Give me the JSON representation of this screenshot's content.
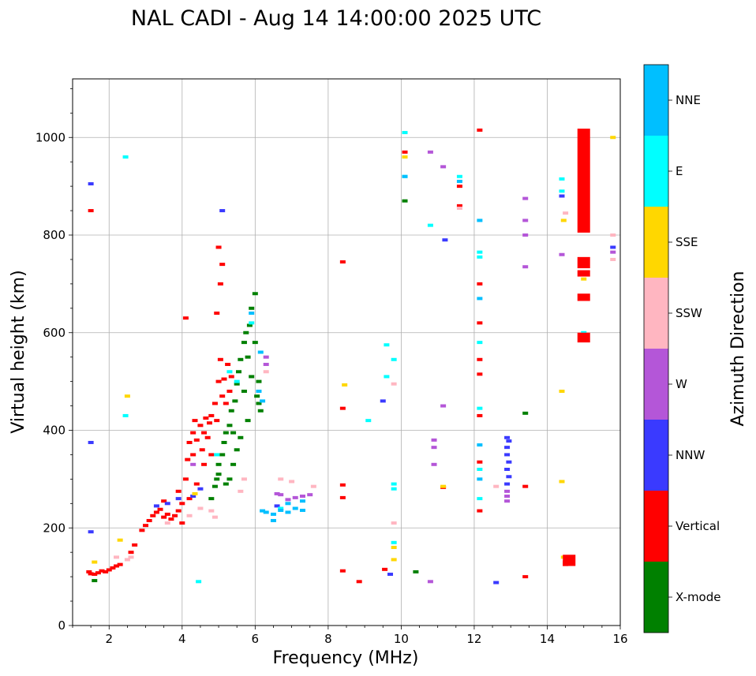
{
  "chart_data": {
    "type": "scatter",
    "title": "NAL CADI - Aug 14 14:00:00 2025 UTC",
    "xlabel": "Frequency (MHz)",
    "ylabel": "Virtual height (km)",
    "xlim": [
      1,
      16
    ],
    "ylim": [
      0,
      1120
    ],
    "xticks": [
      2,
      4,
      6,
      8,
      10,
      12,
      14,
      16
    ],
    "yticks": [
      0,
      200,
      400,
      600,
      800,
      1000
    ],
    "grid": true,
    "colorbar": {
      "title": "Azimuth Direction",
      "placement": "right",
      "categories": [
        {
          "name": "X-mode",
          "color": "#008000"
        },
        {
          "name": "Vertical",
          "color": "#ff0000"
        },
        {
          "name": "NNW",
          "color": "#3a3aff"
        },
        {
          "name": "W",
          "color": "#b456d8"
        },
        {
          "name": "SSW",
          "color": "#ffb6c1"
        },
        {
          "name": "SSE",
          "color": "#ffd700"
        },
        {
          "name": "E",
          "color": "#00ffff"
        },
        {
          "name": "NNE",
          "color": "#00bfff"
        }
      ]
    },
    "series": [
      {
        "name": "Vertical",
        "points": [
          [
            1.45,
            110
          ],
          [
            1.5,
            106
          ],
          [
            1.6,
            105
          ],
          [
            1.7,
            108
          ],
          [
            1.8,
            112
          ],
          [
            1.9,
            110
          ],
          [
            2.0,
            114
          ],
          [
            2.1,
            118
          ],
          [
            2.2,
            122
          ],
          [
            2.3,
            125
          ],
          [
            2.6,
            150
          ],
          [
            2.7,
            165
          ],
          [
            2.9,
            195
          ],
          [
            3.0,
            205
          ],
          [
            3.1,
            215
          ],
          [
            3.2,
            225
          ],
          [
            3.3,
            232
          ],
          [
            3.4,
            238
          ],
          [
            3.5,
            222
          ],
          [
            3.6,
            228
          ],
          [
            3.7,
            218
          ],
          [
            3.8,
            225
          ],
          [
            3.9,
            235
          ],
          [
            4.0,
            250
          ],
          [
            4.1,
            300
          ],
          [
            4.15,
            340
          ],
          [
            4.2,
            375
          ],
          [
            4.3,
            395
          ],
          [
            4.35,
            420
          ],
          [
            4.4,
            380
          ],
          [
            4.5,
            410
          ],
          [
            4.55,
            360
          ],
          [
            4.6,
            395
          ],
          [
            4.65,
            425
          ],
          [
            4.7,
            385
          ],
          [
            4.75,
            415
          ],
          [
            4.8,
            430
          ],
          [
            4.9,
            455
          ],
          [
            4.95,
            420
          ],
          [
            5.0,
            500
          ],
          [
            5.05,
            545
          ],
          [
            5.1,
            470
          ],
          [
            5.15,
            505
          ],
          [
            5.2,
            455
          ],
          [
            5.25,
            535
          ],
          [
            5.3,
            480
          ],
          [
            5.35,
            510
          ],
          [
            5.0,
            775
          ],
          [
            5.1,
            740
          ],
          [
            5.05,
            700
          ],
          [
            4.95,
            640
          ],
          [
            4.1,
            630
          ],
          [
            1.5,
            850
          ],
          [
            3.9,
            275
          ],
          [
            4.2,
            260
          ],
          [
            4.4,
            290
          ],
          [
            4.6,
            330
          ],
          [
            4.3,
            350
          ],
          [
            4.8,
            350
          ],
          [
            3.5,
            255
          ],
          [
            4.0,
            210
          ],
          [
            8.4,
            262
          ],
          [
            8.4,
            288
          ],
          [
            8.4,
            112
          ],
          [
            8.4,
            445
          ],
          [
            8.4,
            745
          ],
          [
            8.85,
            90
          ],
          [
            9.55,
            115
          ],
          [
            10.1,
            970
          ],
          [
            11.15,
            283
          ],
          [
            11.6,
            860
          ],
          [
            11.6,
            900
          ],
          [
            12.15,
            235
          ],
          [
            12.15,
            335
          ],
          [
            12.15,
            430
          ],
          [
            12.15,
            515
          ],
          [
            12.15,
            545
          ],
          [
            12.15,
            620
          ],
          [
            12.15,
            700
          ],
          [
            12.15,
            1015
          ],
          [
            13.4,
            285
          ],
          [
            13.4,
            100
          ],
          [
            14.5,
            140
          ],
          [
            14.5,
            130
          ],
          [
            14.5,
            125
          ]
        ]
      },
      {
        "name": "X-mode",
        "points": [
          [
            1.6,
            92
          ],
          [
            4.95,
            300
          ],
          [
            5.0,
            330
          ],
          [
            5.1,
            350
          ],
          [
            5.15,
            375
          ],
          [
            5.2,
            395
          ],
          [
            5.3,
            410
          ],
          [
            5.35,
            440
          ],
          [
            5.45,
            460
          ],
          [
            5.5,
            495
          ],
          [
            5.55,
            520
          ],
          [
            5.6,
            545
          ],
          [
            5.7,
            580
          ],
          [
            5.75,
            600
          ],
          [
            5.85,
            615
          ],
          [
            5.9,
            650
          ],
          [
            6.0,
            680
          ],
          [
            6.05,
            470
          ],
          [
            6.1,
            455
          ],
          [
            6.15,
            440
          ],
          [
            5.8,
            420
          ],
          [
            5.6,
            385
          ],
          [
            5.5,
            360
          ],
          [
            5.4,
            330
          ],
          [
            5.3,
            300
          ],
          [
            4.8,
            260
          ],
          [
            4.9,
            285
          ],
          [
            5.0,
            310
          ],
          [
            5.2,
            290
          ],
          [
            5.4,
            395
          ],
          [
            5.9,
            510
          ],
          [
            5.7,
            480
          ],
          [
            5.8,
            550
          ],
          [
            6.0,
            580
          ],
          [
            6.1,
            500
          ],
          [
            10.1,
            870
          ],
          [
            10.4,
            110
          ],
          [
            13.4,
            435
          ]
        ]
      },
      {
        "name": "NNW",
        "points": [
          [
            1.5,
            905
          ],
          [
            1.5,
            375
          ],
          [
            1.5,
            192
          ],
          [
            5.1,
            850
          ],
          [
            12.6,
            88
          ],
          [
            12.9,
            385
          ],
          [
            12.95,
            378
          ],
          [
            12.9,
            365
          ],
          [
            12.9,
            350
          ],
          [
            12.95,
            335
          ],
          [
            12.9,
            320
          ],
          [
            12.95,
            305
          ],
          [
            12.9,
            290
          ],
          [
            14.4,
            880
          ],
          [
            15.8,
            775
          ],
          [
            11.2,
            790
          ],
          [
            9.5,
            460
          ],
          [
            9.7,
            105
          ],
          [
            3.3,
            245
          ],
          [
            3.6,
            250
          ],
          [
            3.9,
            260
          ],
          [
            4.5,
            280
          ],
          [
            4.3,
            265
          ],
          [
            6.6,
            245
          ]
        ]
      },
      {
        "name": "W",
        "points": [
          [
            7.5,
            268
          ],
          [
            7.3,
            265
          ],
          [
            7.1,
            262
          ],
          [
            6.9,
            258
          ],
          [
            6.7,
            268
          ],
          [
            6.6,
            270
          ],
          [
            12.9,
            275
          ],
          [
            12.9,
            265
          ],
          [
            12.9,
            255
          ],
          [
            13.4,
            875
          ],
          [
            13.4,
            830
          ],
          [
            13.4,
            800
          ],
          [
            13.4,
            735
          ],
          [
            14.4,
            760
          ],
          [
            15.8,
            765
          ],
          [
            10.8,
            970
          ],
          [
            10.9,
            380
          ],
          [
            10.9,
            365
          ],
          [
            10.9,
            330
          ],
          [
            11.15,
            940
          ],
          [
            11.15,
            450
          ],
          [
            10.8,
            90
          ],
          [
            4.3,
            330
          ],
          [
            6.3,
            550
          ],
          [
            6.3,
            535
          ]
        ]
      },
      {
        "name": "SSW",
        "points": [
          [
            2.2,
            140
          ],
          [
            2.5,
            135
          ],
          [
            2.6,
            140
          ],
          [
            3.6,
            210
          ],
          [
            4.2,
            225
          ],
          [
            4.5,
            240
          ],
          [
            4.8,
            235
          ],
          [
            4.9,
            222
          ],
          [
            5.6,
            275
          ],
          [
            5.7,
            300
          ],
          [
            6.7,
            300
          ],
          [
            7.0,
            295
          ],
          [
            7.6,
            285
          ],
          [
            15.8,
            750
          ],
          [
            15.8,
            800
          ],
          [
            14.5,
            845
          ],
          [
            9.8,
            495
          ],
          [
            9.8,
            210
          ],
          [
            11.6,
            855
          ],
          [
            12.6,
            285
          ],
          [
            6.3,
            520
          ]
        ]
      },
      {
        "name": "SSE",
        "points": [
          [
            1.6,
            130
          ],
          [
            2.3,
            175
          ],
          [
            2.5,
            470
          ],
          [
            4.35,
            270
          ],
          [
            8.45,
            493
          ],
          [
            9.8,
            160
          ],
          [
            9.8,
            135
          ],
          [
            14.4,
            480
          ],
          [
            14.4,
            295
          ],
          [
            14.45,
            140
          ],
          [
            15.8,
            1000
          ],
          [
            15.0,
            710
          ],
          [
            15.0,
            595
          ],
          [
            10.1,
            960
          ],
          [
            11.15,
            285
          ],
          [
            14.45,
            830
          ]
        ]
      },
      {
        "name": "E",
        "points": [
          [
            2.45,
            960
          ],
          [
            2.45,
            430
          ],
          [
            4.95,
            350
          ],
          [
            5.3,
            520
          ],
          [
            5.5,
            500
          ],
          [
            5.9,
            620
          ],
          [
            6.7,
            240
          ],
          [
            9.6,
            575
          ],
          [
            9.6,
            510
          ],
          [
            9.8,
            545
          ],
          [
            9.8,
            290
          ],
          [
            9.8,
            280
          ],
          [
            9.8,
            170
          ],
          [
            10.1,
            1010
          ],
          [
            10.1,
            920
          ],
          [
            10.8,
            820
          ],
          [
            11.6,
            920
          ],
          [
            12.15,
            765
          ],
          [
            12.15,
            755
          ],
          [
            12.15,
            580
          ],
          [
            12.15,
            445
          ],
          [
            12.15,
            320
          ],
          [
            12.15,
            260
          ],
          [
            14.4,
            915
          ],
          [
            14.4,
            890
          ],
          [
            15.0,
            600
          ],
          [
            9.1,
            420
          ],
          [
            4.45,
            90
          ]
        ]
      },
      {
        "name": "NNE",
        "points": [
          [
            6.3,
            232
          ],
          [
            6.5,
            228
          ],
          [
            6.7,
            236
          ],
          [
            6.9,
            232
          ],
          [
            7.1,
            240
          ],
          [
            7.3,
            236
          ],
          [
            6.5,
            215
          ],
          [
            6.2,
            235
          ],
          [
            6.15,
            560
          ],
          [
            6.2,
            460
          ],
          [
            5.9,
            640
          ],
          [
            6.1,
            480
          ],
          [
            6.9,
            250
          ],
          [
            7.3,
            255
          ],
          [
            11.6,
            910
          ],
          [
            12.15,
            830
          ],
          [
            12.15,
            670
          ],
          [
            12.15,
            370
          ],
          [
            12.15,
            300
          ],
          [
            10.1,
            920
          ]
        ]
      }
    ],
    "annotations": [
      {
        "name": "Vertical",
        "x": 15.0,
        "y0": 805,
        "y1": 1018
      },
      {
        "name": "Vertical",
        "x": 15.0,
        "y0": 732,
        "y1": 755
      },
      {
        "name": "Vertical",
        "x": 15.0,
        "y0": 715,
        "y1": 728
      },
      {
        "name": "Vertical",
        "x": 15.0,
        "y0": 665,
        "y1": 680
      },
      {
        "name": "Vertical",
        "x": 15.0,
        "y0": 580,
        "y1": 600
      },
      {
        "name": "Vertical",
        "x": 14.6,
        "y0": 122,
        "y1": 145
      }
    ]
  }
}
